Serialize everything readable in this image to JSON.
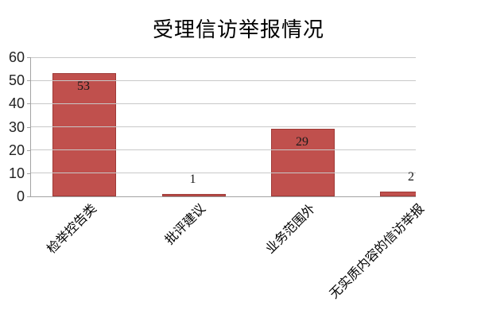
{
  "chart_data": {
    "type": "bar",
    "title": "受理信访举报情况",
    "categories": [
      "检举控告类",
      "批评建议",
      "业务范围外",
      "无实质内容的信访举报"
    ],
    "values": [
      53,
      1,
      29,
      2
    ],
    "xlabel": "",
    "ylabel": "",
    "ylim": [
      0,
      60
    ],
    "yticks": [
      0,
      10,
      20,
      30,
      40,
      50,
      60
    ],
    "grid": "horizontal",
    "legend": "none",
    "value_label_position": "inside-end",
    "bar_color": "#C0504D",
    "bar_border_color": "#9E3A37",
    "gridline_color": "#C8C8C8",
    "axis_color": "#A3A3A3",
    "background_color": "#FFFFFF",
    "title_color": "#000000",
    "value_label_color": "#1A1A1A"
  }
}
